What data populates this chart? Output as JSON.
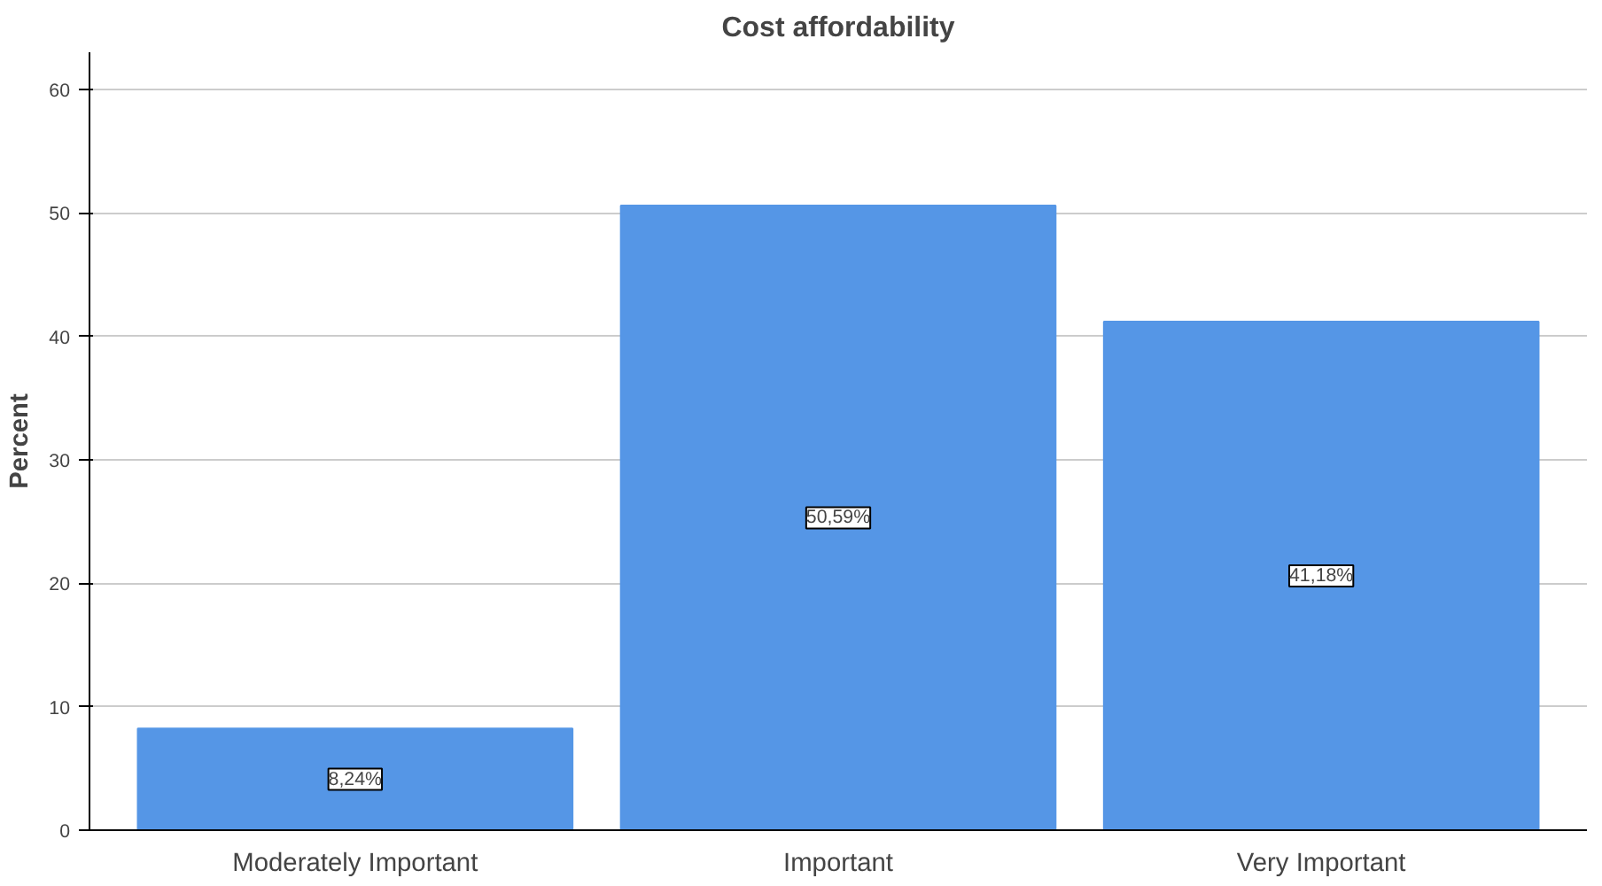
{
  "chart_data": {
    "type": "bar",
    "title": "Cost affordability",
    "ylabel": "Percent",
    "categories": [
      "Moderately Important",
      "Important",
      "Very Important"
    ],
    "values": [
      8.24,
      50.59,
      41.18
    ],
    "value_labels": [
      "8,24%",
      "50,59%",
      "41,18%"
    ],
    "color": "#5596e6",
    "ylim": [
      0,
      63
    ],
    "yticks": [
      0,
      10,
      20,
      30,
      40,
      50,
      60
    ],
    "grid": "y"
  }
}
